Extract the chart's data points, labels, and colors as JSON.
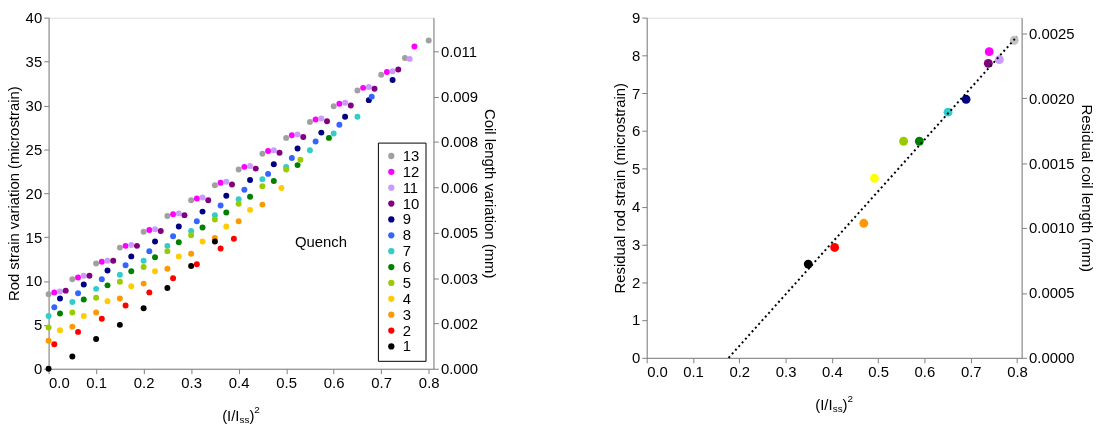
{
  "chart_data": [
    {
      "type": "scatter",
      "xlabel": "(I/I$_{ss}$)$^{2}$",
      "ylabel": "Rod strain variation (microstrain)",
      "y2label": "Coil length variation (mm)",
      "xlim": [
        0,
        0.81
      ],
      "ylim": [
        0,
        40
      ],
      "xticks": [
        {
          "value": 0,
          "label": "0.0"
        },
        0.1,
        0.2,
        0.3,
        0.4,
        0.5,
        0.6,
        0.7,
        0.8
      ],
      "yticks": [
        0,
        5,
        10,
        15,
        20,
        25,
        30,
        35,
        40
      ],
      "y2lim": [
        0,
        0.012
      ],
      "y2ticks": [
        {
          "value": 0,
          "label": "0.000"
        },
        {
          "value": 0.00155,
          "label": "0.002"
        },
        {
          "value": 0.0031,
          "label": "0.003"
        },
        {
          "value": 0.00465,
          "label": "0.005"
        },
        {
          "value": 0.0062,
          "label": "0.006"
        },
        {
          "value": 0.00775,
          "label": "0.008"
        },
        {
          "value": 0.0093,
          "label": "0.009"
        },
        {
          "value": 0.01085,
          "label": "0.011"
        }
      ],
      "annotations": [
        "Quench"
      ],
      "legend": "bottom right",
      "marker": "circle",
      "grid": false,
      "series": [
        {
          "name": "13",
          "color": "#a0a0a0",
          "x": [
            0,
            0.05,
            0.1,
            0.15,
            0.2,
            0.25,
            0.3,
            0.35,
            0.4,
            0.45,
            0.5,
            0.55,
            0.6,
            0.65,
            0.7,
            0.75,
            0.8
          ],
          "values": [
            8.5,
            10.2,
            12.0,
            13.8,
            15.6,
            17.4,
            19.2,
            20.9,
            22.7,
            24.5,
            26.3,
            28.1,
            29.9,
            31.7,
            33.5,
            35.4,
            37.4
          ]
        },
        {
          "name": "12",
          "color": "#ff00ff",
          "x": [
            0.012,
            0.062,
            0.112,
            0.162,
            0.212,
            0.262,
            0.312,
            0.362,
            0.412,
            0.462,
            0.512,
            0.562,
            0.612,
            0.662,
            0.712,
            0.77
          ],
          "values": [
            8.7,
            10.4,
            12.2,
            14.0,
            15.8,
            17.6,
            19.4,
            21.2,
            23.0,
            24.8,
            26.6,
            28.4,
            30.2,
            32.0,
            33.8,
            36.7
          ]
        },
        {
          "name": "11",
          "color": "#cc99ff",
          "x": [
            0.024,
            0.074,
            0.124,
            0.174,
            0.224,
            0.274,
            0.324,
            0.374,
            0.424,
            0.474,
            0.524,
            0.574,
            0.624,
            0.674,
            0.724,
            0.76
          ],
          "values": [
            8.8,
            10.6,
            12.3,
            14.1,
            15.9,
            17.7,
            19.5,
            21.3,
            23.1,
            24.9,
            26.7,
            28.5,
            30.3,
            32.1,
            33.9,
            35.3
          ]
        },
        {
          "name": "10",
          "color": "#800080",
          "x": [
            0.036,
            0.086,
            0.136,
            0.186,
            0.236,
            0.286,
            0.336,
            0.386,
            0.436,
            0.486,
            0.536,
            0.586,
            0.636,
            0.686,
            0.736
          ],
          "values": [
            8.9,
            10.6,
            12.3,
            14.0,
            15.7,
            17.5,
            19.2,
            21.0,
            22.8,
            24.6,
            26.4,
            28.2,
            30.0,
            31.9,
            34.1
          ]
        },
        {
          "name": "9",
          "color": "#000080",
          "x": [
            0.024,
            0.074,
            0.124,
            0.174,
            0.224,
            0.274,
            0.324,
            0.374,
            0.424,
            0.474,
            0.524,
            0.574,
            0.624,
            0.674,
            0.724
          ],
          "values": [
            8.0,
            9.6,
            11.2,
            12.8,
            14.5,
            16.2,
            17.9,
            19.7,
            21.5,
            23.3,
            25.1,
            26.9,
            28.7,
            30.6,
            32.9
          ]
        },
        {
          "name": "8",
          "color": "#3366ff",
          "x": [
            0.012,
            0.062,
            0.112,
            0.162,
            0.212,
            0.262,
            0.312,
            0.362,
            0.412,
            0.462,
            0.512,
            0.562,
            0.612,
            0.68
          ],
          "values": [
            7.0,
            8.6,
            10.2,
            11.8,
            13.4,
            15.1,
            16.8,
            18.6,
            20.4,
            22.2,
            24.0,
            25.9,
            27.8,
            31.0
          ]
        },
        {
          "name": "7",
          "color": "#33cccc",
          "x": [
            0,
            0.05,
            0.1,
            0.15,
            0.2,
            0.25,
            0.3,
            0.35,
            0.4,
            0.45,
            0.5,
            0.55,
            0.6,
            0.65
          ],
          "values": [
            6.0,
            7.6,
            9.1,
            10.7,
            12.3,
            14.0,
            15.7,
            17.5,
            19.3,
            21.6,
            23.0,
            24.9,
            26.8,
            28.7
          ]
        },
        {
          "name": "6",
          "color": "#008000",
          "x": [
            0.024,
            0.074,
            0.124,
            0.174,
            0.224,
            0.274,
            0.324,
            0.374,
            0.424,
            0.474,
            0.524,
            0.59
          ],
          "values": [
            6.3,
            7.9,
            9.5,
            11.1,
            12.7,
            14.4,
            16.1,
            17.8,
            19.6,
            21.4,
            23.2,
            26.3
          ]
        },
        {
          "name": "5",
          "color": "#99cc00",
          "x": [
            0,
            0.05,
            0.1,
            0.15,
            0.2,
            0.25,
            0.3,
            0.35,
            0.4,
            0.45,
            0.5,
            0.53
          ],
          "values": [
            4.7,
            6.4,
            8.1,
            9.9,
            11.6,
            13.4,
            15.2,
            17.0,
            18.8,
            20.8,
            22.7,
            23.8
          ]
        },
        {
          "name": "4",
          "color": "#ffcc00",
          "x": [
            0.024,
            0.074,
            0.124,
            0.174,
            0.224,
            0.274,
            0.324,
            0.374,
            0.424,
            0.49
          ],
          "values": [
            4.4,
            6.0,
            7.7,
            9.4,
            11.1,
            12.8,
            14.5,
            16.2,
            18.1,
            20.6
          ]
        },
        {
          "name": "3",
          "color": "#ff9900",
          "x": [
            0,
            0.05,
            0.1,
            0.15,
            0.2,
            0.25,
            0.3,
            0.35,
            0.4,
            0.45
          ],
          "values": [
            3.2,
            4.8,
            6.4,
            8.0,
            9.7,
            11.4,
            13.1,
            14.9,
            16.8,
            18.7
          ]
        },
        {
          "name": "2",
          "color": "#ff0000",
          "x": [
            0.012,
            0.062,
            0.112,
            0.162,
            0.212,
            0.262,
            0.312,
            0.362,
            0.39
          ],
          "values": [
            2.8,
            4.2,
            5.7,
            7.2,
            8.7,
            10.3,
            11.9,
            13.7,
            14.8
          ]
        },
        {
          "name": "1",
          "color": "#000000",
          "x": [
            0,
            0.05,
            0.1,
            0.15,
            0.2,
            0.25,
            0.3,
            0.35
          ],
          "values": [
            0,
            1.4,
            3.4,
            5.0,
            6.9,
            9.2,
            11.7,
            14.5
          ]
        }
      ]
    },
    {
      "type": "scatter",
      "xlabel": "(I/I$_{ss}$)$^{2}$",
      "ylabel": "Residual rod strain (microstrain)",
      "y2label": "Residual coil length (mm)",
      "xlim": [
        0,
        0.81
      ],
      "ylim": [
        0,
        9
      ],
      "xticks": [
        {
          "value": 0,
          "label": "0.0"
        },
        0.1,
        0.2,
        0.3,
        0.4,
        0.5,
        0.6,
        0.7,
        0.8
      ],
      "yticks": [
        0,
        1,
        2,
        3,
        4,
        5,
        6,
        7,
        8,
        9
      ],
      "y2lim": [
        0,
        0.00262
      ],
      "y2ticks": [
        {
          "value": 0,
          "label": "0.0000"
        },
        {
          "value": 0.0005,
          "label": "0.0005"
        },
        {
          "value": 0.001,
          "label": "0.0010"
        },
        {
          "value": 0.0015,
          "label": "0.0015"
        },
        {
          "value": 0.002,
          "label": "0.0020"
        },
        {
          "value": 0.0025,
          "label": "0.0025"
        }
      ],
      "marker": "circle",
      "grid": false,
      "series": [
        {
          "type": "scatter",
          "x": [
            0.349,
            0.406,
            0.469,
            0.492,
            0.555,
            0.589,
            0.651,
            0.69,
            0.738,
            0.762,
            0.74,
            0.794
          ],
          "values": [
            2.48,
            2.92,
            3.56,
            4.75,
            5.73,
            5.73,
            6.5,
            6.84,
            7.79,
            7.89,
            8.1,
            8.4
          ],
          "colors": [
            "#000000",
            "#ff0000",
            "#ff9900",
            "#ffff00",
            "#99cc00",
            "#008000",
            "#33cccc",
            "#000080",
            "#800080",
            "#cc99ff",
            "#ff00ff",
            "#c0c0c0"
          ]
        },
        {
          "type": "line",
          "color": "#000000",
          "line_style": "dotted",
          "marker": "none",
          "x": [
            0.177,
            0.8
          ],
          "values": [
            0,
            8.5
          ]
        }
      ]
    }
  ]
}
